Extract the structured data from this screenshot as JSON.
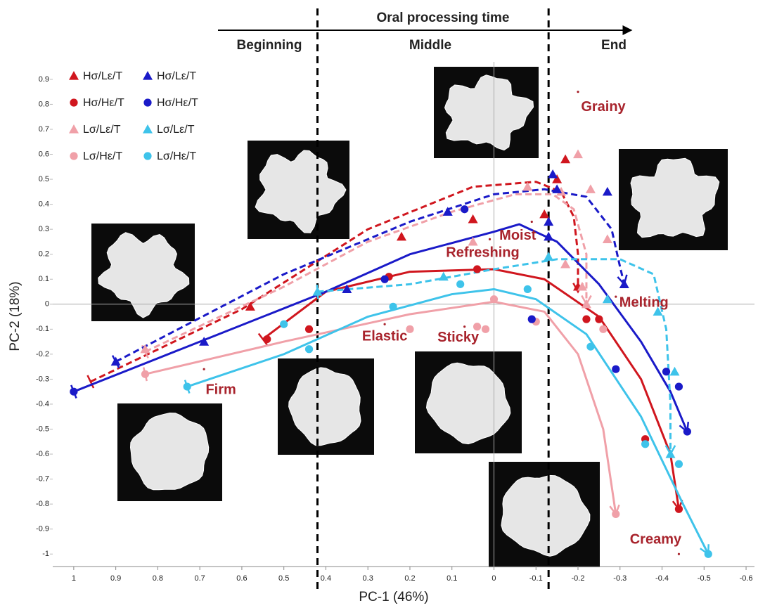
{
  "chart_data": {
    "type": "scatter",
    "x_label": "PC-1 (46%)",
    "y_label": "PC-2 (18%)",
    "xlim": [
      1.05,
      -0.62
    ],
    "ylim": [
      -1.05,
      0.97
    ],
    "xticks": [
      1,
      0.9,
      0.8,
      0.7,
      0.6,
      0.5,
      0.4,
      0.3,
      0.2,
      0.1,
      0,
      -0.1,
      -0.2,
      -0.3,
      -0.4,
      -0.5,
      -0.6
    ],
    "yticks": [
      0.9,
      0.8,
      0.7,
      0.6,
      0.5,
      0.4,
      0.3,
      0.2,
      0.1,
      0,
      -0.1,
      -0.2,
      -0.3,
      -0.4,
      -0.5,
      -0.6,
      -0.7,
      -0.8,
      -0.9,
      -1
    ],
    "zero_lines": true,
    "phase_title": "Oral processing time",
    "phases": [
      "Beginning",
      "Middle",
      "End"
    ],
    "phase_boundaries": [
      0.42,
      -0.13
    ],
    "series": [
      {
        "name": "Hσ/Lε/T",
        "color": "#d0161e",
        "marker": "triangle",
        "x": [
          0.58,
          0.22,
          0.05,
          -0.12,
          -0.15,
          -0.17,
          -0.2
        ],
        "y": [
          -0.01,
          0.27,
          0.34,
          0.36,
          0.5,
          0.58,
          0.07
        ]
      },
      {
        "name": "Hσ/Hε/T",
        "color": "#d0161e",
        "marker": "circle",
        "x": [
          0.54,
          0.44,
          0.25,
          0.04,
          -0.22,
          -0.25,
          -0.36,
          -0.44
        ],
        "y": [
          -0.14,
          -0.1,
          0.11,
          0.14,
          -0.06,
          -0.06,
          -0.54,
          -0.82
        ]
      },
      {
        "name": "Lσ/Lε/T",
        "color": "#f0a0a8",
        "marker": "triangle",
        "x": [
          0.83,
          0.05,
          -0.08,
          -0.16,
          -0.2,
          -0.23,
          -0.27,
          -0.17,
          -0.21,
          -0.22
        ],
        "y": [
          -0.18,
          0.25,
          0.47,
          0.45,
          0.6,
          0.46,
          0.26,
          0.16,
          0.07,
          0.0
        ]
      },
      {
        "name": "Lσ/Hε/T",
        "color": "#f0a0a8",
        "marker": "circle",
        "x": [
          0.83,
          0.2,
          0.04,
          0.02,
          0.0,
          -0.1,
          -0.26,
          -0.29
        ],
        "y": [
          -0.28,
          -0.1,
          -0.09,
          -0.1,
          0.02,
          -0.07,
          -0.1,
          -0.84
        ]
      },
      {
        "name": "Hσ/Lε/T",
        "color": "#1a1ac8",
        "marker": "triangle",
        "x": [
          0.9,
          0.69,
          0.35,
          0.11,
          -0.14,
          -0.15,
          -0.13,
          -0.13,
          -0.27,
          -0.31
        ],
        "y": [
          -0.23,
          -0.15,
          0.06,
          0.37,
          0.52,
          0.46,
          0.33,
          0.27,
          0.45,
          0.08
        ]
      },
      {
        "name": "Hσ/Hε/T",
        "color": "#1a1ac8",
        "marker": "circle",
        "x": [
          1.0,
          0.26,
          0.07,
          -0.09,
          -0.29,
          -0.41,
          -0.44,
          -0.46
        ],
        "y": [
          -0.35,
          0.1,
          0.38,
          -0.06,
          -0.26,
          -0.27,
          -0.33,
          -0.51
        ]
      },
      {
        "name": "Lσ/Lε/T",
        "color": "#3ec3ea",
        "marker": "triangle",
        "x": [
          0.42,
          0.12,
          -0.13,
          -0.27,
          -0.39,
          -0.43,
          -0.42
        ],
        "y": [
          0.05,
          0.11,
          0.19,
          0.02,
          -0.03,
          -0.27,
          -0.6
        ]
      },
      {
        "name": "Lσ/Hε/T",
        "color": "#3ec3ea",
        "marker": "circle",
        "x": [
          0.73,
          0.5,
          0.44,
          0.24,
          0.08,
          -0.08,
          -0.23,
          -0.36,
          -0.44,
          -0.51
        ],
        "y": [
          -0.33,
          -0.08,
          -0.18,
          -0.01,
          0.08,
          0.06,
          -0.17,
          -0.56,
          -0.64,
          -1.0
        ]
      }
    ],
    "curves": [
      {
        "color": "#d0161e",
        "dashed": true,
        "x": [
          0.96,
          0.6,
          0.3,
          0.05,
          -0.1,
          -0.16,
          -0.19,
          -0.2,
          -0.2
        ],
        "y": [
          -0.31,
          -0.02,
          0.3,
          0.47,
          0.49,
          0.45,
          0.35,
          0.2,
          0.05
        ]
      },
      {
        "color": "#d0161e",
        "dashed": false,
        "x": [
          0.55,
          0.4,
          0.2,
          0.0,
          -0.12,
          -0.25,
          -0.35,
          -0.42,
          -0.44
        ],
        "y": [
          -0.14,
          0.05,
          0.13,
          0.14,
          0.1,
          -0.05,
          -0.3,
          -0.6,
          -0.82
        ]
      },
      {
        "color": "#f0a0a8",
        "dashed": true,
        "x": [
          0.83,
          0.5,
          0.3,
          0.1,
          -0.05,
          -0.14,
          -0.19,
          -0.22,
          -0.22
        ],
        "y": [
          -0.19,
          0.07,
          0.25,
          0.37,
          0.44,
          0.44,
          0.38,
          0.2,
          0.0
        ]
      },
      {
        "color": "#f0a0a8",
        "dashed": false,
        "x": [
          0.83,
          0.5,
          0.2,
          0.0,
          -0.12,
          -0.2,
          -0.26,
          -0.29
        ],
        "y": [
          -0.28,
          -0.15,
          -0.04,
          0.01,
          -0.03,
          -0.2,
          -0.5,
          -0.84
        ]
      },
      {
        "color": "#1a1ac8",
        "dashed": true,
        "x": [
          0.9,
          0.5,
          0.2,
          0.0,
          -0.12,
          -0.22,
          -0.28,
          -0.3,
          -0.31
        ],
        "y": [
          -0.23,
          0.12,
          0.33,
          0.44,
          0.46,
          0.43,
          0.3,
          0.15,
          0.08
        ]
      },
      {
        "color": "#1a1ac8",
        "dashed": false,
        "x": [
          1.0,
          0.7,
          0.4,
          0.2,
          0.0,
          -0.06,
          -0.15,
          -0.25,
          -0.35,
          -0.42,
          -0.46
        ],
        "y": [
          -0.35,
          -0.15,
          0.05,
          0.2,
          0.29,
          0.32,
          0.25,
          0.08,
          -0.15,
          -0.35,
          -0.51
        ]
      },
      {
        "color": "#3ec3ea",
        "dashed": true,
        "x": [
          0.42,
          0.2,
          0.0,
          -0.15,
          -0.3,
          -0.38,
          -0.41,
          -0.42,
          -0.42
        ],
        "y": [
          0.05,
          0.08,
          0.14,
          0.18,
          0.18,
          0.12,
          -0.1,
          -0.4,
          -0.6
        ]
      },
      {
        "color": "#3ec3ea",
        "dashed": false,
        "x": [
          0.73,
          0.5,
          0.3,
          0.1,
          0.0,
          -0.1,
          -0.22,
          -0.35,
          -0.45,
          -0.51
        ],
        "y": [
          -0.33,
          -0.2,
          -0.05,
          0.04,
          0.06,
          0.02,
          -0.12,
          -0.45,
          -0.8,
          -1.0
        ]
      }
    ],
    "attributes": [
      {
        "label": "Grainy",
        "x": -0.2,
        "y": 0.85
      },
      {
        "label": "Moist",
        "x": -0.09,
        "y": 0.33
      },
      {
        "label": "Refreshing",
        "x": 0.01,
        "y": 0.26
      },
      {
        "label": "Melting",
        "x": -0.29,
        "y": 0.03
      },
      {
        "label": "Elastic",
        "x": 0.26,
        "y": -0.08
      },
      {
        "label": "Sticky",
        "x": 0.07,
        "y": -0.09
      },
      {
        "label": "Firm",
        "x": 0.69,
        "y": -0.26
      },
      {
        "label": "Creamy",
        "x": -0.44,
        "y": -1.0
      }
    ]
  }
}
